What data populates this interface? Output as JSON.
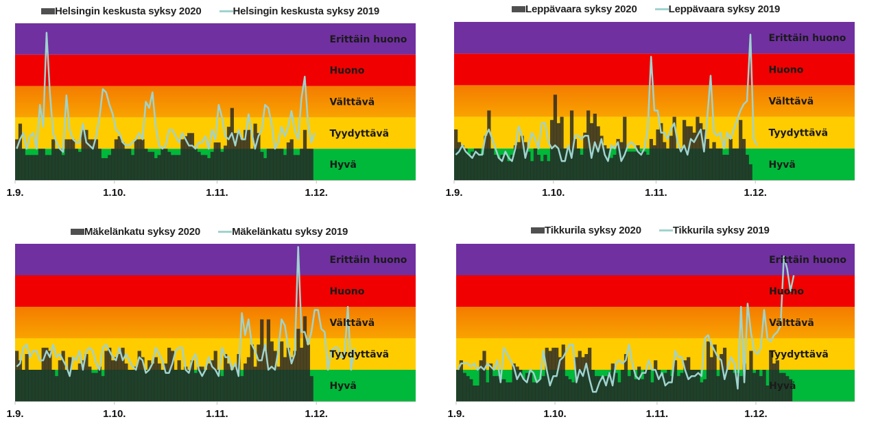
{
  "bands": [
    {
      "name": "Hyvä",
      "from": 0,
      "to": 1,
      "color": "#00b83a"
    },
    {
      "name": "Tyydyttävä",
      "from": 1,
      "to": 2,
      "color": "#ffcc00"
    },
    {
      "name": "Välttävä",
      "from": 2,
      "to": 3,
      "color_top": "#f47b00",
      "color_bottom": "#f9a300"
    },
    {
      "name": "Huono",
      "from": 3,
      "to": 4,
      "color": "#f00000"
    },
    {
      "name": "Erittäin huono",
      "from": 4,
      "to": 5,
      "color": "#7030a0"
    }
  ],
  "colors": {
    "bar_2020": "#262626",
    "bar_opacity": 0.82,
    "line_2019": "#9fd3cf",
    "legend_bar": "#505050"
  },
  "chart_data": [
    {
      "type": "bar+line",
      "station": "Helsingin keskusta",
      "legend": [
        "Helsingin keskusta syksy 2020",
        "Helsingin keskusta syksy 2019"
      ],
      "x_ticks": [
        "1.9.",
        "1.10.",
        "1.11.",
        "1.12."
      ],
      "x_range_days": [
        0,
        121
      ],
      "tick_days": [
        0,
        30,
        61,
        91
      ],
      "ylim": [
        0,
        5
      ],
      "y_unit": "air quality index class (band units)",
      "series": [
        {
          "name": "Helsingin keskusta syksy 2020",
          "kind": "bar",
          "values": [
            1.3,
            1.8,
            1.0,
            0.8,
            0.8,
            0.8,
            0.8,
            1.0,
            1.0,
            0.8,
            0.8,
            1.3,
            1.0,
            1.0,
            0.8,
            1.3,
            1.3,
            1.3,
            1.0,
            0.9,
            1.6,
            1.6,
            1.3,
            1.3,
            1.3,
            1.0,
            0.7,
            0.7,
            0.8,
            1.0,
            1.3,
            1.4,
            1.2,
            1.0,
            1.0,
            0.8,
            1.3,
            1.3,
            1.3,
            1.0,
            0.9,
            0.9,
            0.7,
            0.8,
            1.0,
            1.0,
            0.9,
            0.8,
            0.8,
            0.8,
            1.3,
            1.4,
            1.5,
            1.5,
            1.0,
            0.9,
            0.8,
            0.8,
            0.7,
            0.9,
            1.2,
            1.2,
            0.9,
            1.1,
            1.7,
            2.3,
            1.5,
            1.5,
            1.3,
            1.6,
            1.6,
            1.0,
            1.8,
            1.5,
            0.9,
            0.7,
            1.0,
            1.0,
            1.0,
            1.0,
            1.0,
            0.8,
            1.2,
            1.3,
            0.8,
            0.8,
            1.0,
            1.6,
            1.0,
            1.0
          ]
        },
        {
          "name": "Helsingin keskusta syksy 2019",
          "kind": "line",
          "values": [
            1.0,
            1.3,
            1.5,
            1.0,
            1.4,
            1.5,
            1.0,
            2.4,
            1.7,
            4.7,
            2.8,
            1.5,
            1.2,
            1.0,
            0.9,
            2.7,
            1.6,
            1.3,
            1.2,
            1.2,
            1.8,
            1.2,
            1.1,
            1.0,
            1.4,
            2.0,
            2.9,
            2.8,
            2.4,
            2.1,
            1.6,
            1.5,
            1.2,
            1.1,
            1.1,
            1.2,
            1.3,
            1.5,
            1.3,
            2.5,
            2.3,
            2.8,
            1.7,
            1.1,
            1.0,
            1.1,
            1.6,
            1.6,
            1.4,
            1.2,
            1.5,
            1.3,
            1.1,
            1.1,
            1.0,
            1.2,
            1.2,
            1.4,
            1.0,
            1.6,
            1.3,
            2.4,
            2.0,
            1.4,
            1.3,
            1.5,
            1.1,
            1.6,
            1.3,
            1.3,
            2.1,
            1.5,
            1.0,
            1.4,
            1.6,
            2.4,
            2.3,
            1.8,
            1.0,
            1.2,
            1.7,
            1.4,
            1.7,
            2.2,
            1.6,
            1.3,
            2.6,
            3.3,
            1.8,
            1.2,
            1.5
          ]
        }
      ]
    },
    {
      "type": "bar+line",
      "station": "Leppävaara",
      "legend": [
        "Leppävaara syksy 2020",
        "Leppävaara syksy 2019"
      ],
      "x_ticks": [
        "1.9.",
        "1.10.",
        "1.11.",
        "1.12."
      ],
      "x_range_days": [
        0,
        121
      ],
      "tick_days": [
        0,
        30,
        61,
        91
      ],
      "ylim": [
        0,
        5
      ],
      "y_unit": "air quality index class (band units)",
      "series": [
        {
          "name": "Leppävaara syksy 2020",
          "kind": "bar",
          "values": [
            1.6,
            1.2,
            1.1,
            1.0,
            0.8,
            0.9,
            1.0,
            1.0,
            0.8,
            1.4,
            2.2,
            1.0,
            0.8,
            0.7,
            0.8,
            0.8,
            0.6,
            0.8,
            1.1,
            1.2,
            1.4,
            1.2,
            0.9,
            0.6,
            1.0,
            0.8,
            0.6,
            0.8,
            0.6,
            1.9,
            2.7,
            1.8,
            2.0,
            1.0,
            1.0,
            2.2,
            1.3,
            1.0,
            0.8,
            1.5,
            2.2,
            1.8,
            2.1,
            1.7,
            1.4,
            1.1,
            1.0,
            0.7,
            0.8,
            1.3,
            1.2,
            2.0,
            0.9,
            0.9,
            0.9,
            1.1,
            0.9,
            0.9,
            0.8,
            1.3,
            1.1,
            1.6,
            1.8,
            1.2,
            1.0,
            1.4,
            2.0,
            1.0,
            1.0,
            1.9,
            1.7,
            1.7,
            1.5,
            2.0,
            1.8,
            1.6,
            1.3,
            1.0,
            1.2,
            1.0,
            1.0,
            0.8,
            0.8,
            1.3,
            1.0,
            1.0,
            1.9,
            1.3,
            0.8,
            0.5
          ]
        },
        {
          "name": "Leppävaara syksy 2019",
          "kind": "line",
          "values": [
            0.8,
            0.9,
            1.1,
            0.9,
            0.8,
            0.7,
            0.9,
            0.8,
            0.8,
            1.4,
            1.6,
            1.3,
            1.0,
            0.7,
            0.6,
            0.9,
            0.7,
            0.6,
            1.0,
            1.7,
            1.4,
            0.7,
            1.1,
            1.5,
            1.3,
            1.0,
            1.8,
            1.8,
            1.2,
            1.0,
            1.1,
            1.0,
            0.6,
            0.6,
            1.1,
            0.7,
            1.4,
            1.4,
            1.3,
            1.4,
            1.4,
            0.7,
            1.2,
            0.9,
            1.3,
            0.8,
            0.6,
            1.1,
            1.0,
            1.2,
            0.6,
            0.8,
            1.1,
            1.2,
            1.1,
            0.9,
            0.8,
            1.0,
            1.6,
            3.9,
            2.2,
            2.2,
            1.5,
            1.5,
            1.3,
            1.6,
            1.8,
            1.2,
            0.9,
            1.1,
            0.8,
            1.3,
            1.2,
            1.4,
            1.6,
            0.9,
            2.0,
            3.3,
            1.5,
            1.4,
            1.5,
            1.0,
            1.5,
            1.3,
            1.6,
            1.9,
            2.2,
            2.4,
            2.5,
            4.6,
            1.3,
            1.1
          ]
        }
      ]
    },
    {
      "type": "bar+line",
      "station": "Mäkelänkatu",
      "legend": [
        "Mäkelänkatu syksy 2020",
        "Mäkelänkatu syksy 2019"
      ],
      "x_ticks": [
        "1.9.",
        "1.10.",
        "1.11.",
        "1.12."
      ],
      "x_range_days": [
        0,
        121
      ],
      "tick_days": [
        0,
        30,
        61,
        91
      ],
      "ylim": [
        0,
        5
      ],
      "y_unit": "air quality index class (band units)",
      "series": [
        {
          "name": "Mäkelänkatu syksy 2020",
          "kind": "bar",
          "values": [
            1.6,
            1.3,
            1.0,
            1.5,
            1.0,
            1.0,
            1.0,
            1.0,
            1.7,
            1.7,
            1.6,
            1.0,
            0.8,
            1.3,
            1.6,
            1.0,
            1.4,
            1.0,
            1.0,
            1.2,
            1.3,
            1.5,
            1.1,
            0.9,
            0.9,
            1.1,
            0.8,
            1.6,
            1.7,
            1.3,
            1.4,
            1.5,
            1.7,
            1.2,
            1.0,
            1.0,
            1.1,
            1.6,
            1.4,
            1.0,
            1.3,
            1.2,
            1.4,
            1.2,
            1.0,
            1.2,
            1.7,
            1.6,
            1.0,
            1.3,
            1.0,
            1.1,
            1.0,
            1.3,
            0.9,
            1.1,
            1.1,
            1.0,
            1.2,
            1.3,
            1.6,
            1.0,
            0.8,
            1.5,
            1.2,
            1.0,
            1.1,
            1.5,
            0.8,
            1.2,
            1.4,
            1.8,
            1.1,
            1.8,
            2.6,
            1.6,
            2.6,
            1.9,
            1.6,
            1.1,
            1.9,
            1.4,
            1.7,
            1.4,
            1.6,
            2.3,
            1.7,
            2.7,
            1.8,
            0.8
          ]
        },
        {
          "name": "Mäkelänkatu syksy 2019",
          "kind": "line",
          "values": [
            1.1,
            1.2,
            1.7,
            1.8,
            1.4,
            1.6,
            1.6,
            1.3,
            1.3,
            1.6,
            1.4,
            1.8,
            1.4,
            1.5,
            1.3,
            1.1,
            0.8,
            1.4,
            1.3,
            1.6,
            1.0,
            1.6,
            1.7,
            1.6,
            1.2,
            1.0,
            1.7,
            1.8,
            1.6,
            1.4,
            1.3,
            1.7,
            1.3,
            1.5,
            1.3,
            1.1,
            1.0,
            1.4,
            1.3,
            0.9,
            1.0,
            1.2,
            1.7,
            1.5,
            1.3,
            0.9,
            0.9,
            1.2,
            1.6,
            1.7,
            1.7,
            1.0,
            0.9,
            1.3,
            1.5,
            1.0,
            0.8,
            1.0,
            1.4,
            1.1,
            1.0,
            0.8,
            1.7,
            1.4,
            1.4,
            1.0,
            1.2,
            0.8,
            2.8,
            2.1,
            2.6,
            1.8,
            1.6,
            1.3,
            1.3,
            1.8,
            1.0,
            1.1,
            1.0,
            1.6,
            2.6,
            2.4,
            1.7,
            1.2,
            1.5,
            4.9,
            2.2,
            2.2,
            1.8,
            2.2,
            2.9,
            2.9,
            2.3,
            2.2,
            1.0,
            1.6,
            1.7,
            1.7,
            1.4,
            1.4,
            3.0,
            1.0,
            1.7
          ]
        }
      ]
    },
    {
      "type": "bar+line",
      "station": "Tikkurila",
      "legend": [
        "Tikkurila syksy 2020",
        "Tikkurila syksy 2019"
      ],
      "x_ticks": [
        "1.9.",
        "1.10.",
        "1.11.",
        "1.12."
      ],
      "x_range_days": [
        0,
        121
      ],
      "tick_days": [
        0,
        30,
        61,
        91
      ],
      "ylim": [
        0,
        5
      ],
      "y_unit": "air quality index class (band units)",
      "series": [
        {
          "name": "Tikkurila syksy 2020",
          "kind": "bar",
          "values": [
            1.0,
            1.3,
            0.9,
            0.8,
            0.7,
            0.5,
            0.5,
            1.3,
            1.6,
            0.6,
            1.2,
            0.8,
            0.8,
            0.7,
            0.7,
            0.6,
            0.6,
            1.2,
            1.1,
            1.0,
            0.7,
            0.9,
            0.9,
            0.6,
            0.6,
            0.7,
            0.8,
            1.7,
            1.6,
            1.7,
            1.7,
            1.4,
            1.8,
            0.8,
            0.7,
            0.6,
            1.4,
            1.6,
            1.4,
            1.5,
            1.7,
            1.0,
            0.8,
            0.8,
            0.7,
            0.8,
            0.9,
            1.2,
            0.9,
            0.6,
            1.0,
            1.5,
            0.8,
            1.0,
            0.7,
            1.1,
            0.7,
            1.0,
            1.0,
            0.6,
            1.3,
            1.0,
            0.8,
            0.9,
            1.0,
            0.8,
            1.3,
            0.8,
            0.9,
            1.3,
            1.4,
            1.0,
            1.0,
            1.0,
            0.6,
            0.7,
            1.9,
            1.4,
            1.8,
            0.8,
            1.5,
            1.7,
            1.0,
            1.0,
            0.9,
            0.9,
            0.8,
            1.2,
            1.0,
            1.6,
            0.9,
            1.0,
            0.8,
            1.0,
            0.5,
            1.6,
            1.2,
            1.3,
            0.9,
            0.9,
            0.8,
            0.7
          ]
        },
        {
          "name": "Tikkurila syksy 2019",
          "kind": "line",
          "values": [
            1.0,
            1.2,
            1.2,
            1.2,
            1.1,
            1.2,
            1.0,
            1.1,
            1.0,
            1.2,
            1.1,
            1.0,
            1.3,
            0.6,
            1.7,
            1.5,
            1.3,
            1.1,
            0.7,
            0.9,
            0.7,
            0.6,
            1.0,
            0.9,
            0.6,
            0.7,
            1.6,
            1.0,
            0.5,
            0.8,
            0.8,
            1.3,
            1.4,
            1.6,
            1.8,
            1.8,
            0.6,
            1.0,
            0.8,
            1.2,
            0.7,
            0.3,
            0.3,
            0.6,
            0.8,
            0.5,
            0.9,
            0.5,
            1.2,
            1.3,
            1.2,
            1.3,
            1.8,
            1.2,
            0.8,
            0.7,
            0.9,
            0.9,
            1.3,
            1.0,
            1.0,
            0.7,
            0.9,
            0.5,
            0.6,
            0.6,
            1.6,
            1.4,
            1.4,
            1.0,
            0.7,
            0.8,
            0.8,
            0.9,
            0.8,
            2.0,
            2.1,
            1.8,
            1.6,
            1.4,
            1.3,
            0.7,
            1.1,
            1.4,
            1.2,
            0.4,
            3.0,
            0.6,
            3.1,
            2.2,
            1.6,
            1.5,
            1.7,
            2.9,
            2.0,
            1.9,
            2.1,
            2.2,
            2.4,
            4.6,
            4.2,
            3.5,
            4.0
          ]
        }
      ]
    }
  ]
}
